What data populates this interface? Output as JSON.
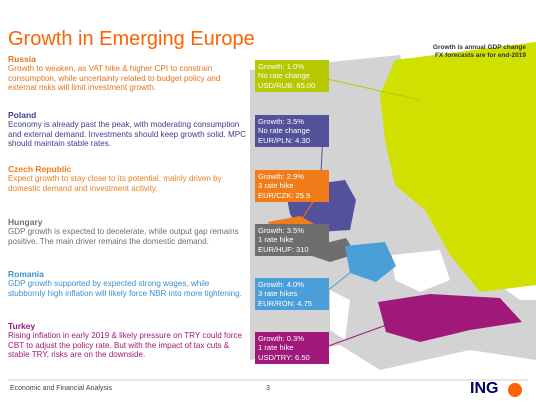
{
  "header": {
    "title": "Growth in Emerging Europe",
    "notes": [
      "Growth is annual GDP change",
      "FX forecasts are for end-2019"
    ]
  },
  "countries": [
    {
      "name": "Russia",
      "text": "Growth to weaken, as VAT hike & higher CPI to constrain consumption, while uncertainty related to budget policy and external risks will limit investment growth.",
      "box": [
        "Growth: 1.0%",
        "No rate change",
        "USD/RUB: 65.00"
      ]
    },
    {
      "name": "Poland",
      "text": "Economy is already past the peak, with moderating consumption and external demand. Investments should keep growth solid. MPC should maintain stable rates.",
      "box": [
        "Growth: 3.5%",
        "No rate change",
        "EUR/PLN: 4.30"
      ]
    },
    {
      "name": "Czech Republic",
      "text": "Expect growth to stay close to its potential, mainly driven by domestic demand and investment activity.",
      "box": [
        "Growth: 2.9%",
        "3 rate hike",
        "EUR/CZK: 25.5"
      ]
    },
    {
      "name": "Hungary",
      "text": "GDP growth is expected to decelerate, while output gap remains positive. The main driver remains the domestic demand.",
      "box": [
        "Growth: 3.5%",
        "1 rate hike",
        "EUR/HUF: 310"
      ]
    },
    {
      "name": "Romania",
      "text": "GDP growth supported by expected strong wages, while stubbornly high inflation will likely force NBR into more tightening.",
      "box": [
        "Growth: 4.0%",
        "3 rate hikes",
        "EUR/RON: 4.75"
      ]
    },
    {
      "name": "Turkey",
      "text": "Rising inflation in early 2019 & likely pressure on TRY could force CBT to adjust the policy rate. But with the impact of tax cuts & stable TRY, risks are on the downside.",
      "box": [
        "Growth: 0.3%",
        "1 rate hike",
        "USD/TRY: 6.50"
      ]
    }
  ],
  "footer": {
    "section": "Economic and Financial Analysis",
    "page": "3",
    "logo": "ING"
  }
}
